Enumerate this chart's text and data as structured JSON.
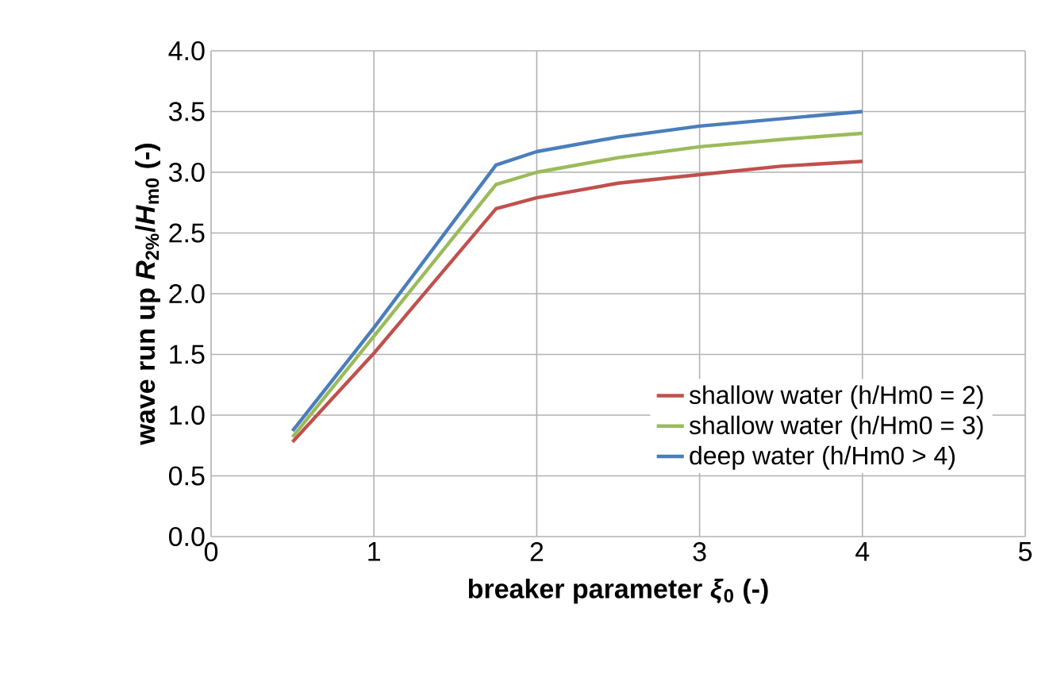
{
  "chart_data": {
    "type": "line",
    "xlabel": "breaker parameter *ξ*$_{0}$ (-)",
    "ylabel": "wave run up *R*$_{2%}$/*H*$_{m0}$ (-)",
    "x": [
      0.5,
      1.0,
      1.75,
      2.0,
      2.5,
      3.0,
      3.5,
      4.0
    ],
    "series": [
      {
        "name": "shallow water (h/Hm0 = 2)",
        "color": "#c0504d",
        "values": [
          0.78,
          1.51,
          2.7,
          2.79,
          2.91,
          2.98,
          3.05,
          3.09
        ]
      },
      {
        "name": "shallow water (h/Hm0 = 3)",
        "color": "#9bbb59",
        "values": [
          0.82,
          1.65,
          2.9,
          3.0,
          3.12,
          3.21,
          3.27,
          3.32
        ]
      },
      {
        "name": "deep water (h/Hm0 > 4)",
        "color": "#4a7ebb",
        "values": [
          0.87,
          1.72,
          3.06,
          3.17,
          3.29,
          3.38,
          3.44,
          3.5
        ]
      }
    ],
    "xlim": [
      0,
      5
    ],
    "xticks": [
      0,
      1,
      2,
      3,
      4,
      5
    ],
    "ylim": [
      0,
      4
    ],
    "yticks": [
      {
        "value": 0,
        "label": "0.0"
      },
      {
        "value": 0.5,
        "label": "0.5"
      },
      {
        "value": 1,
        "label": "1.0"
      },
      {
        "value": 1.5,
        "label": "1.5"
      },
      {
        "value": 2,
        "label": "2.0"
      },
      {
        "value": 2.5,
        "label": "2.5"
      },
      {
        "value": 3,
        "label": "3.0"
      },
      {
        "value": 3.5,
        "label": "3.5"
      },
      {
        "value": 4,
        "label": "4.0"
      }
    ],
    "grid": true,
    "legend": "bottom right",
    "marker": "none",
    "line_style": "solid"
  }
}
